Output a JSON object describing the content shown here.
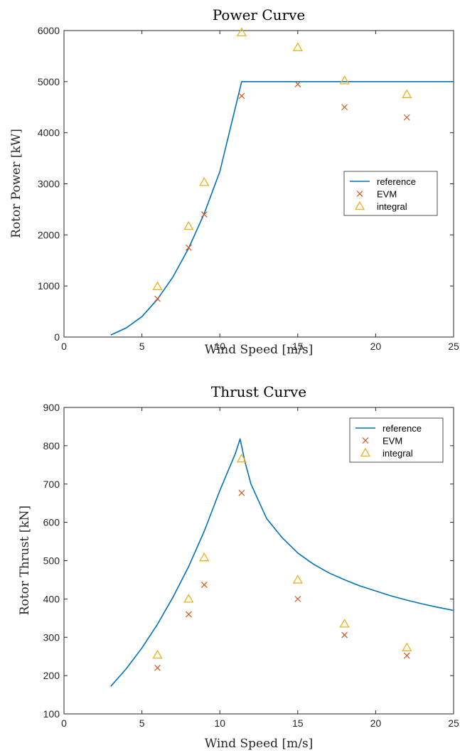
{
  "chart_data": [
    {
      "type": "line",
      "title": "Power Curve",
      "xlabel": "Wind Speed [m/s]",
      "ylabel": "Rotor Power [kW]",
      "xlim": [
        0,
        25
      ],
      "ylim": [
        0,
        6000
      ],
      "xticks": [
        0,
        5,
        10,
        15,
        20,
        25
      ],
      "yticks": [
        0,
        1000,
        2000,
        3000,
        4000,
        5000,
        6000
      ],
      "grid": false,
      "legend_position": "middle-right",
      "series": [
        {
          "name": "reference",
          "style": "line",
          "color": "#0072BD",
          "x": [
            3,
            4,
            5,
            6,
            7,
            8,
            9,
            10,
            11.4,
            25
          ],
          "y": [
            40,
            180,
            400,
            740,
            1180,
            1740,
            2420,
            3240,
            5000,
            5000
          ]
        },
        {
          "name": "EVM",
          "style": "x",
          "color": "#D95319",
          "x": [
            6,
            8,
            9,
            11.4,
            15,
            18,
            22
          ],
          "y": [
            750,
            1750,
            2400,
            4720,
            4950,
            4500,
            4300
          ]
        },
        {
          "name": "integral",
          "style": "triangle",
          "color": "#EDB120",
          "x": [
            6,
            8,
            9,
            11.4,
            15,
            18,
            22
          ],
          "y": [
            990,
            2170,
            3030,
            5960,
            5670,
            5020,
            4750
          ]
        }
      ]
    },
    {
      "type": "line",
      "title": "Thrust Curve",
      "xlabel": "Wind Speed [m/s]",
      "ylabel": "Rotor Thrust [kN]",
      "xlim": [
        0,
        25
      ],
      "ylim": [
        100,
        900
      ],
      "xticks": [
        0,
        5,
        10,
        15,
        20,
        25
      ],
      "yticks": [
        100,
        200,
        300,
        400,
        500,
        600,
        700,
        800,
        900
      ],
      "grid": false,
      "legend_position": "top-right",
      "series": [
        {
          "name": "reference",
          "style": "line",
          "color": "#0072BD",
          "x": [
            3,
            4,
            5,
            6,
            7,
            8,
            9,
            10,
            11,
            11.3,
            11.6,
            12,
            13,
            14,
            15,
            16,
            17,
            18,
            19,
            20,
            21,
            22,
            23,
            24,
            25
          ],
          "y": [
            172,
            218,
            272,
            334,
            405,
            485,
            577,
            683,
            780,
            818,
            760,
            700,
            610,
            560,
            520,
            491,
            468,
            450,
            434,
            421,
            408,
            397,
            387,
            378,
            370
          ]
        },
        {
          "name": "EVM",
          "style": "x",
          "color": "#D95319",
          "x": [
            6,
            8,
            9,
            11.4,
            15,
            18,
            22
          ],
          "y": [
            220,
            360,
            437,
            677,
            400,
            306,
            252
          ]
        },
        {
          "name": "integral",
          "style": "triangle",
          "color": "#EDB120",
          "x": [
            6,
            8,
            9,
            11.4,
            15,
            18,
            22
          ],
          "y": [
            254,
            400,
            508,
            766,
            450,
            335,
            273
          ]
        }
      ]
    }
  ]
}
